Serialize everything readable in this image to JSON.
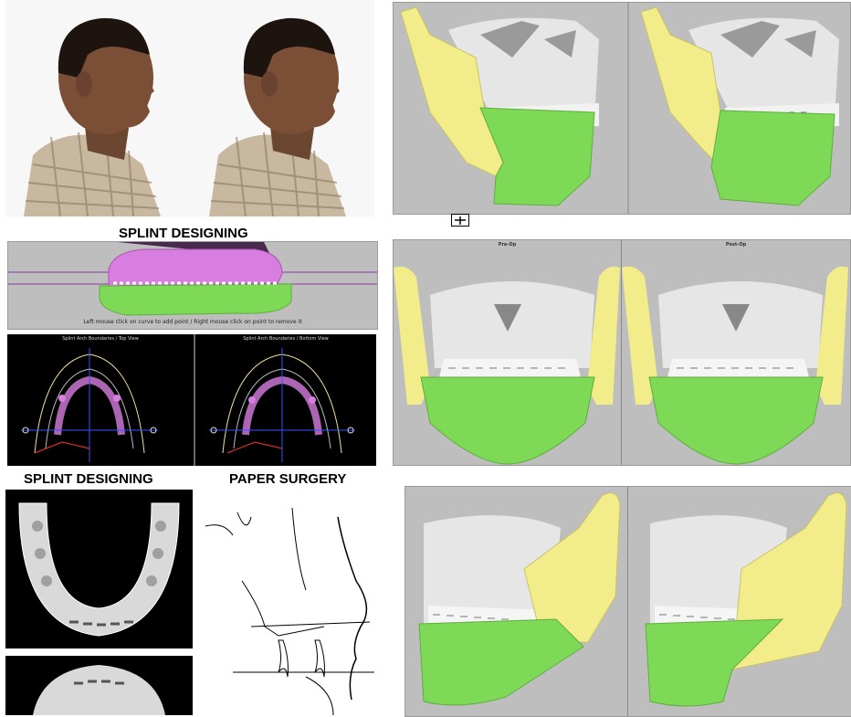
{
  "headings": {
    "splint_designing_top": "SPLINT DESIGNING",
    "splint_designing_bottom": "SPLINT DESIGNING",
    "paper_surgery": "PAPER SURGERY"
  },
  "splint_caption": "Left mouse click on curve to add point / Right mouse click on point to remove it",
  "arch_views": {
    "left": "Splint Arch Boundaries / Top View",
    "right": "Splint Arch Boundaries / Bottom View"
  },
  "frontal_views": {
    "pre": "Pre-Op",
    "post": "Post-Op"
  },
  "colors": {
    "bone": "#e6e6e6",
    "ramus_yellow": "#f2ec8a",
    "mandible_green": "#7ed957",
    "splint_magenta": "#d77ee0",
    "viewport_gray": "#bebebe",
    "arch_black": "#000000"
  },
  "icons": {
    "plus_box": "plus-box-icon"
  }
}
